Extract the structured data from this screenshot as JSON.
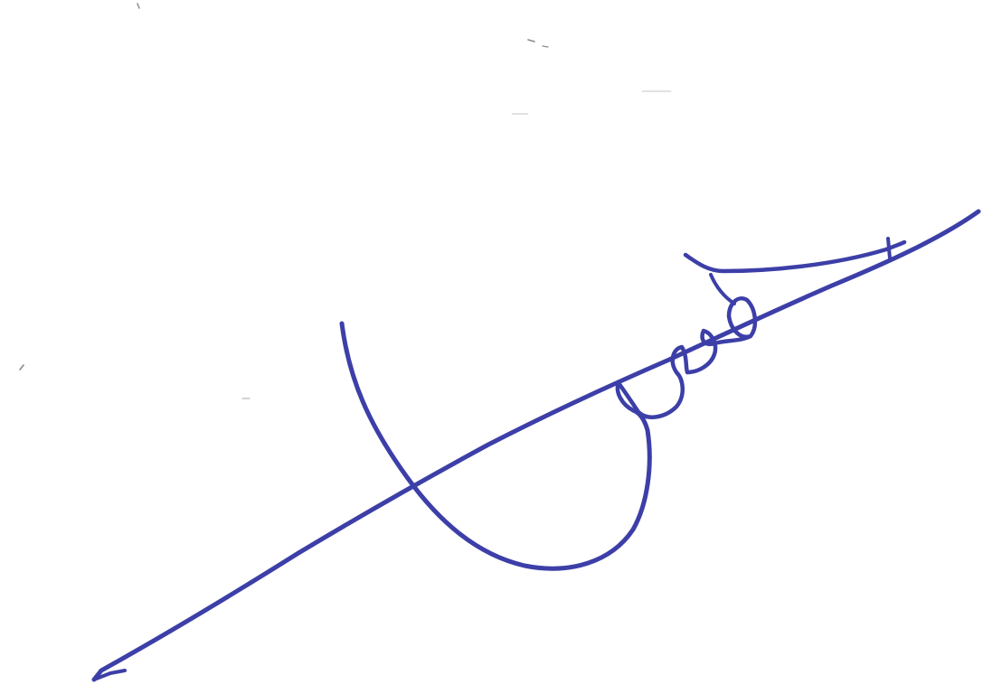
{
  "document": {
    "background": "#ffffff",
    "ink_color": "#3d3fa8",
    "speck_color": "#8a8a8a"
  },
  "signature": {
    "kind": "handwritten-signature",
    "text": ""
  }
}
